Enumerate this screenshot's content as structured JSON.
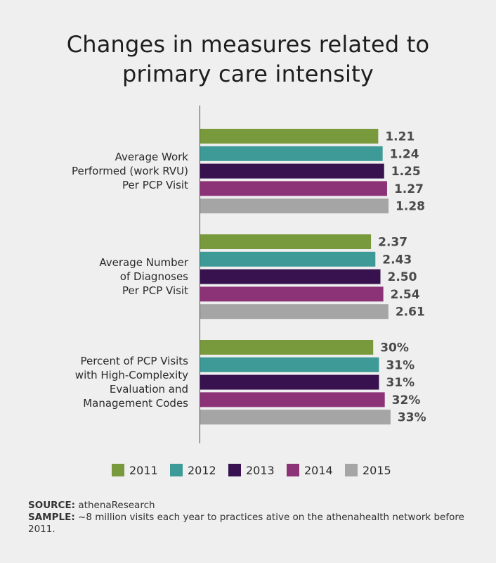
{
  "chart_data": {
    "type": "bar",
    "orientation": "horizontal",
    "title": "Changes in measures related to primary care intensity",
    "title_lines": [
      "Changes in measures related to",
      "primary care intensity"
    ],
    "categories": [
      {
        "name": "Average Work Performed (work RVU) Per PCP Visit",
        "lines": [
          "Average Work",
          "Performed (work RVU)",
          "Per PCP Visit"
        ],
        "axis_max": 1.47
      },
      {
        "name": "Average Number of Diagnoses Per PCP Visit",
        "lines": [
          "Average Number",
          "of Diagnoses",
          "Per PCP Visit"
        ],
        "axis_max": 3.0
      },
      {
        "name": "Percent of PCP Visits with High-Complexity Evaluation and Management Codes",
        "lines": [
          "Percent of PCP Visits",
          "with High-Complexity",
          "Evaluation and",
          "Management Codes"
        ],
        "axis_max": 37.5
      }
    ],
    "series": [
      {
        "name": "2011",
        "color": "#789a3c",
        "values": [
          1.21,
          2.37,
          30
        ],
        "labels": [
          "1.21",
          "2.37",
          "30%"
        ]
      },
      {
        "name": "2012",
        "color": "#3e9a96",
        "values": [
          1.24,
          2.43,
          31
        ],
        "labels": [
          "1.24",
          "2.43",
          "31%"
        ]
      },
      {
        "name": "2013",
        "color": "#37124e",
        "values": [
          1.25,
          2.5,
          31
        ],
        "labels": [
          "1.25",
          "2.50",
          "31%"
        ]
      },
      {
        "name": "2014",
        "color": "#8c3378",
        "values": [
          1.27,
          2.54,
          32
        ],
        "labels": [
          "1.27",
          "2.54",
          "32%"
        ]
      },
      {
        "name": "2015",
        "color": "#a5a5a5",
        "values": [
          1.28,
          2.61,
          33
        ],
        "labels": [
          "1.28",
          "2.61",
          "33%"
        ]
      }
    ],
    "legend_position": "bottom",
    "grid": false
  },
  "footer": {
    "source_label": "SOURCE:",
    "source_text": " athenaResearch",
    "sample_label": "SAMPLE:",
    "sample_text": " ~8 million visits each year to practices ative on the athenahealth network before 2011."
  }
}
